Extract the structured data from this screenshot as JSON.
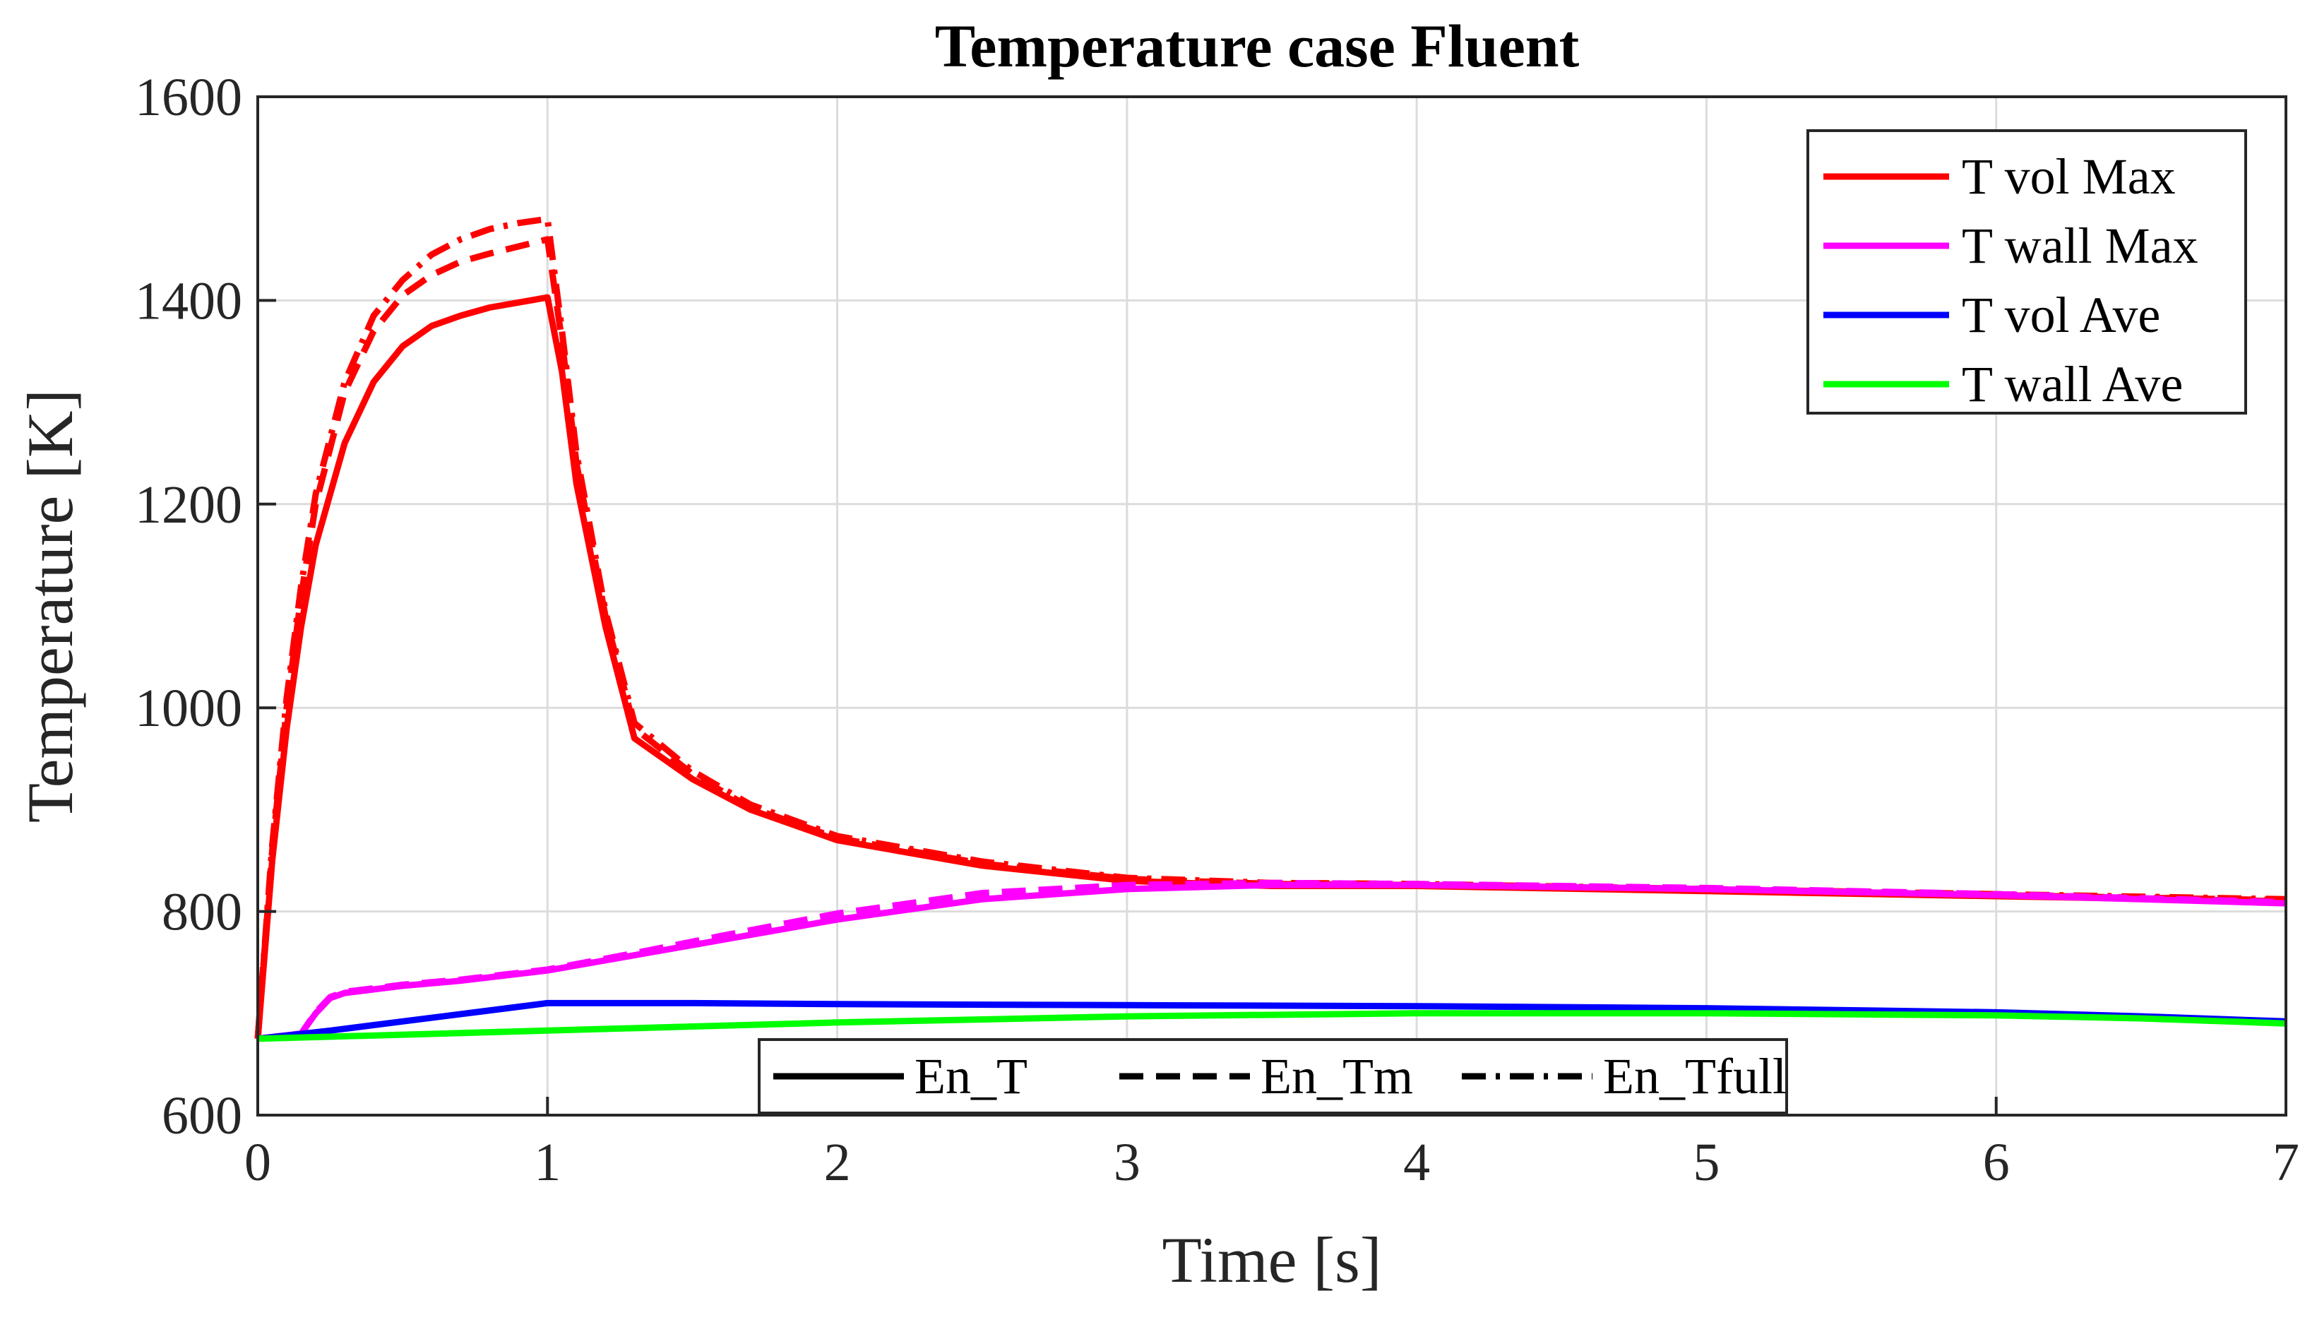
{
  "chart_data": {
    "type": "line",
    "title": "Temperature case Fluent",
    "xlabel": "Time [s]",
    "ylabel": "Temperature [K]",
    "xlim": [
      0,
      7
    ],
    "ylim": [
      600,
      1600
    ],
    "xticks": [
      "0",
      "1",
      "2",
      "3",
      "4",
      "5",
      "6",
      "7"
    ],
    "yticks": [
      "600",
      "800",
      "1000",
      "1200",
      "1400",
      "1600"
    ],
    "grid": true,
    "legend_color": {
      "placement": "top-right",
      "entries": [
        {
          "label": "T vol Max",
          "color": "#ff0000"
        },
        {
          "label": "T wall Max",
          "color": "#ff00ff"
        },
        {
          "label": "T vol Ave",
          "color": "#0000ff"
        },
        {
          "label": "T wall Ave",
          "color": "#00ff00"
        }
      ]
    },
    "legend_style": {
      "placement": "bottom-center",
      "entries": [
        {
          "label": "En_T",
          "dash": "solid"
        },
        {
          "label": "En_Tm",
          "dash": "dashed"
        },
        {
          "label": "En_Tfull",
          "dash": "dash-dot"
        }
      ]
    },
    "series": [
      {
        "color_group": "T vol Max",
        "style": "En_T",
        "color": "#ff0000",
        "dash": "solid",
        "x": [
          0,
          0.05,
          0.1,
          0.15,
          0.2,
          0.3,
          0.4,
          0.5,
          0.6,
          0.7,
          0.8,
          0.9,
          1.0,
          1.05,
          1.1,
          1.2,
          1.3,
          1.5,
          1.7,
          2.0,
          2.5,
          3.0,
          3.5,
          4.0,
          5.0,
          6.0,
          7.0
        ],
        "y": [
          675,
          850,
          980,
          1080,
          1160,
          1260,
          1320,
          1355,
          1375,
          1385,
          1393,
          1398,
          1403,
          1330,
          1220,
          1080,
          970,
          930,
          900,
          870,
          845,
          830,
          825,
          825,
          820,
          815,
          810
        ]
      },
      {
        "color_group": "T vol Max",
        "style": "En_Tm",
        "color": "#ff0000",
        "dash": "dashed",
        "x": [
          0,
          0.05,
          0.1,
          0.15,
          0.2,
          0.3,
          0.4,
          0.5,
          0.6,
          0.7,
          0.8,
          0.9,
          1.0,
          1.05,
          1.1,
          1.2,
          1.3,
          1.5,
          1.7,
          2.0,
          2.5,
          3.0,
          3.5,
          4.0,
          5.0,
          6.0,
          7.0
        ],
        "y": [
          675,
          860,
          1000,
          1110,
          1200,
          1310,
          1370,
          1405,
          1425,
          1438,
          1446,
          1453,
          1460,
          1360,
          1240,
          1090,
          980,
          935,
          902,
          872,
          847,
          832,
          827,
          826,
          821,
          816,
          811
        ]
      },
      {
        "color_group": "T vol Max",
        "style": "En_Tfull",
        "color": "#ff0000",
        "dash": "dash-dot",
        "x": [
          0,
          0.05,
          0.1,
          0.15,
          0.2,
          0.3,
          0.4,
          0.5,
          0.6,
          0.7,
          0.8,
          0.9,
          1.0,
          1.05,
          1.1,
          1.2,
          1.3,
          1.5,
          1.7,
          2.0,
          2.5,
          3.0,
          3.5,
          4.0,
          5.0,
          6.0,
          7.0
        ],
        "y": [
          675,
          865,
          1010,
          1120,
          1210,
          1320,
          1385,
          1420,
          1445,
          1460,
          1470,
          1476,
          1480,
          1370,
          1250,
          1095,
          985,
          938,
          905,
          874,
          849,
          833,
          828,
          827,
          822,
          817,
          812
        ]
      },
      {
        "color_group": "T wall Max",
        "style": "En_T",
        "color": "#ff00ff",
        "dash": "solid",
        "x": [
          0,
          0.15,
          0.2,
          0.25,
          0.3,
          0.5,
          0.7,
          1.0,
          1.3,
          1.6,
          2.0,
          2.5,
          3.0,
          3.5,
          4.0,
          5.0,
          6.0,
          7.0
        ],
        "y": [
          675,
          680,
          700,
          715,
          720,
          727,
          732,
          742,
          757,
          772,
          792,
          812,
          822,
          826,
          826,
          822,
          816,
          808
        ]
      },
      {
        "color_group": "T wall Max",
        "style": "En_Tm",
        "color": "#ff00ff",
        "dash": "dashed",
        "x": [
          0,
          0.15,
          0.2,
          0.25,
          0.3,
          0.5,
          0.7,
          1.0,
          1.3,
          1.6,
          2.0,
          2.5,
          3.0,
          3.5,
          4.0,
          5.0,
          6.0,
          7.0
        ],
        "y": [
          675,
          680,
          701,
          716,
          721,
          728,
          733,
          743,
          759,
          776,
          798,
          818,
          826,
          828,
          827,
          823,
          817,
          809
        ]
      },
      {
        "color_group": "T vol Ave",
        "style": "En_T",
        "color": "#0000ff",
        "dash": "solid",
        "x": [
          0,
          0.25,
          0.5,
          0.75,
          1.0,
          1.5,
          2.0,
          3.0,
          4.0,
          5.0,
          6.0,
          6.5,
          7.0
        ],
        "y": [
          675,
          683,
          692,
          701,
          710,
          710,
          709,
          708,
          707,
          705,
          701,
          697,
          692
        ]
      },
      {
        "color_group": "T wall Ave",
        "style": "En_T",
        "color": "#00ff00",
        "dash": "solid",
        "x": [
          0,
          0.5,
          1.0,
          1.5,
          2.0,
          2.5,
          3.0,
          4.0,
          5.0,
          6.0,
          6.5,
          7.0
        ],
        "y": [
          675,
          679,
          683,
          687,
          691,
          694,
          697,
          700,
          700,
          698,
          695,
          690
        ]
      }
    ]
  }
}
